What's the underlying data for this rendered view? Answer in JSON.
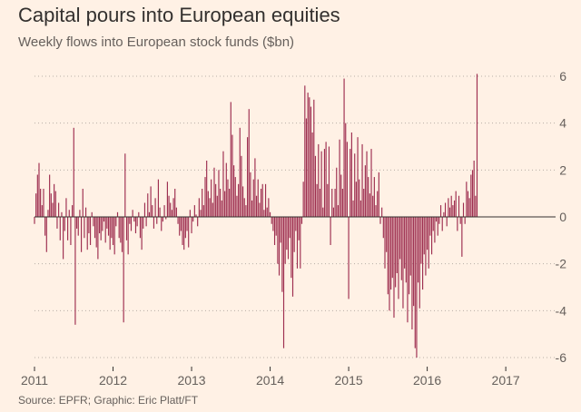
{
  "chart_data": {
    "type": "bar",
    "title": "Capital pours into European equities",
    "subtitle": "Weekly flows into European stock funds ($bn)",
    "source": "Source: EPFR; Graphic: Eric Platt/FT",
    "ylabel": "",
    "xlabel": "",
    "ylim": [
      -6.2,
      6.2
    ],
    "y_ticks": [
      6,
      4,
      2,
      0,
      -2,
      -4,
      -6
    ],
    "y_tick_labels": [
      "6",
      "4",
      "2",
      "0",
      "-2",
      "-4",
      "-6"
    ],
    "x_ticks": [
      2011,
      2012,
      2013,
      2014,
      2015,
      2016,
      2017
    ],
    "x_tick_labels": [
      "2011",
      "2012",
      "2013",
      "2014",
      "2015",
      "2016",
      "2017"
    ],
    "x_range": [
      2011.0,
      2017.38
    ],
    "grid": true,
    "bar_color": "#9e2f50",
    "start": 2011.0,
    "step_years": 0.01923,
    "series": [
      {
        "values": [
          -0.3,
          1.0,
          1.8,
          2.3,
          1.2,
          0.5,
          1.2,
          -0.8,
          -1.5,
          0.3,
          1.8,
          1.0,
          0.6,
          1.4,
          1.1,
          -0.5,
          0.6,
          -1.0,
          0.2,
          -1.8,
          -0.6,
          0.8,
          -1.0,
          0.3,
          -1.2,
          0.5,
          3.8,
          -4.6,
          -0.5,
          -0.8,
          0.3,
          -1.5,
          1.2,
          -0.9,
          0.4,
          -1.4,
          -0.7,
          -1.2,
          0.2,
          -0.4,
          -0.9,
          -1.3,
          -1.8,
          -0.7,
          -1.0,
          -0.6,
          -0.2,
          -1.1,
          -0.5,
          -0.8,
          -1.4,
          -0.9,
          -1.2,
          -1.6,
          -0.4,
          0.2,
          -0.9,
          -1.1,
          -1.5,
          -4.5,
          2.7,
          -1.0,
          -1.6,
          -0.3,
          -0.6,
          0.3,
          -0.2,
          -0.7,
          -0.4,
          0.2,
          -0.9,
          -1.4,
          -0.5,
          0.6,
          -0.4,
          1.0,
          0.2,
          1.3,
          0.5,
          -0.5,
          0.8,
          -0.3,
          1.6,
          0.4,
          -0.6,
          -0.2,
          0.5,
          -0.1,
          1.5,
          0.9,
          0.6,
          0.3,
          0.8,
          1.2,
          0.4,
          -0.3,
          -0.8,
          -0.6,
          -1.2,
          -1.4,
          -0.9,
          -0.6,
          -1.3,
          0.3,
          -0.7,
          -0.2,
          0.5,
          0.1,
          -0.4,
          0.8,
          0.3,
          1.2,
          0.5,
          1.7,
          2.4,
          1.1,
          0.8,
          1.6,
          0.6,
          2.1,
          1.4,
          0.9,
          2.0,
          1.2,
          0.7,
          2.8,
          1.1,
          2.3,
          1.6,
          1.2,
          4.9,
          3.5,
          2.2,
          1.7,
          0.9,
          1.4,
          3.8,
          2.6,
          1.3,
          0.8,
          0.5,
          3.4,
          4.6,
          1.9,
          0.7,
          1.6,
          2.5,
          0.9,
          1.6,
          0.6,
          1.2,
          1.4,
          0.3,
          1.4,
          0.4,
          0.8,
          0.2,
          -0.3,
          -0.6,
          -1.2,
          -0.8,
          -2.0,
          -2.5,
          -1.1,
          -3.2,
          -5.6,
          -2.0,
          -1.4,
          -1.8,
          -0.9,
          -2.6,
          -3.4,
          -1.5,
          -0.6,
          -2.2,
          -1.0,
          -2.2,
          -0.3,
          1.5,
          5.6,
          4.2,
          5.3,
          5.1,
          4.7,
          3.6,
          5.0,
          2.6,
          1.4,
          3.1,
          1.2,
          2.8,
          0.4,
          2.9,
          3.2,
          1.4,
          3.0,
          -1.2,
          1.2,
          0.4,
          1.2,
          2.1,
          0.5,
          3.3,
          1.8,
          1.2,
          5.9,
          4.0,
          3.2,
          -3.5,
          2.9,
          3.6,
          0.7,
          2.7,
          1.5,
          3.4,
          1.6,
          0.7,
          3.1,
          1.2,
          2.2,
          2.8,
          1.7,
          1.0,
          2.9,
          0.9,
          1.7,
          0.5,
          1.1,
          1.9,
          -0.3,
          0.4,
          -0.9,
          -2.2,
          -1.5,
          -3.3,
          -4.0,
          -3.1,
          -2.6,
          -4.3,
          -3.0,
          -2.4,
          -3.5,
          -1.8,
          -2.7,
          -3.9,
          -2.2,
          -2.8,
          -4.5,
          -3.3,
          -2.5,
          -4.8,
          -3.8,
          -5.6,
          -6.0,
          -2.8,
          -3.9,
          -2.0,
          -3.1,
          -1.6,
          -2.5,
          -1.4,
          -2.2,
          -0.8,
          -1.6,
          -0.6,
          -1.1,
          -0.2,
          -0.8,
          -0.3,
          0.5,
          -0.6,
          0.2,
          0.6,
          -0.4,
          0.8,
          0.4,
          0.9,
          0.5,
          0.7,
          1.1,
          -0.6,
          0.9,
          -0.3,
          -1.7,
          0.6,
          -0.3,
          1.5,
          1.1,
          0.8,
          1.8,
          2.0,
          2.4,
          0.9,
          6.1
        ]
      }
    ]
  }
}
